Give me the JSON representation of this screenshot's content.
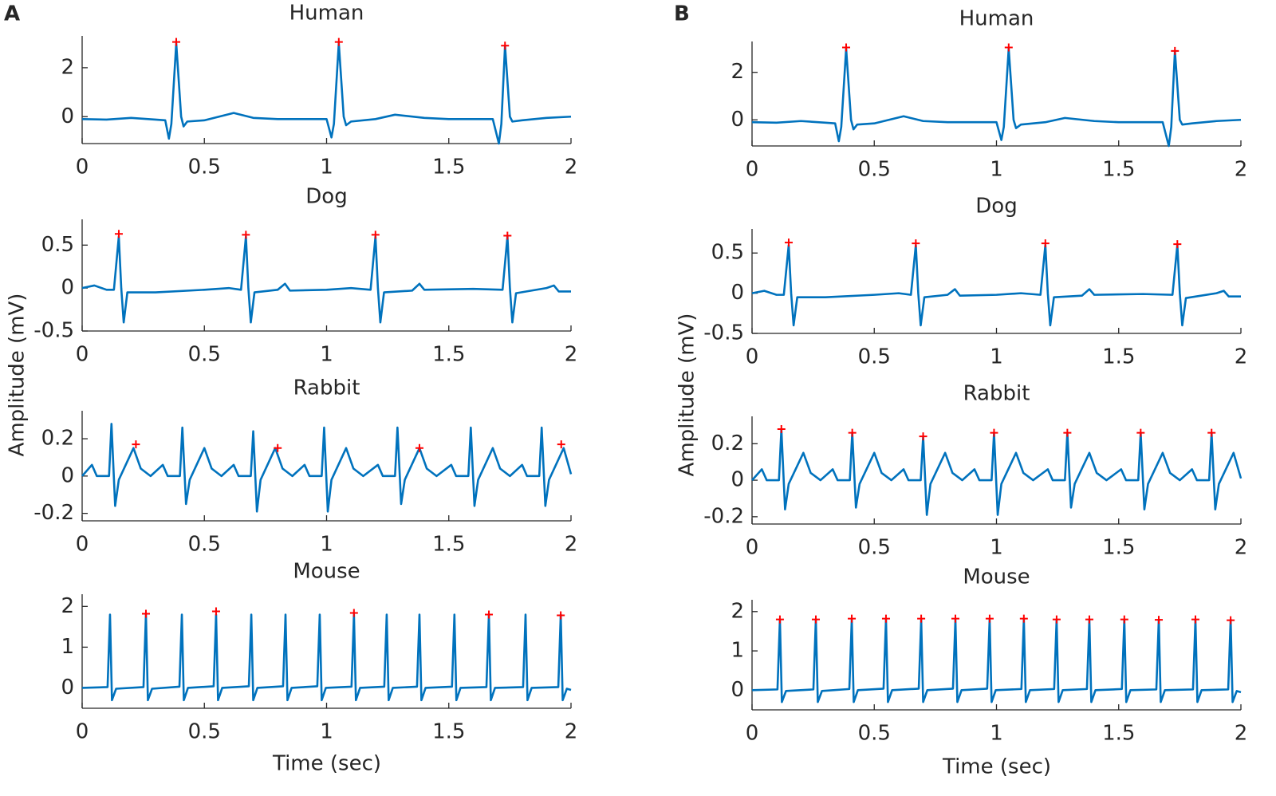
{
  "panels": [
    {
      "label": "A",
      "ylabel": "Amplitude (mV)",
      "xlabel": "Time (sec)"
    },
    {
      "label": "B",
      "ylabel": "Amplitude (mV)",
      "xlabel": "Time (sec)"
    }
  ],
  "chart_data": [
    {
      "type": "line",
      "title": "Human",
      "xlim": [
        0,
        2
      ],
      "xticks": [
        0,
        0.5,
        1,
        1.5,
        2
      ],
      "ylim": [
        -1.1,
        3.3
      ],
      "yticks": [
        0,
        2
      ],
      "x": [
        0,
        0.1,
        0.2,
        0.3,
        0.34,
        0.355,
        0.365,
        0.385,
        0.405,
        0.415,
        0.43,
        0.5,
        0.62,
        0.7,
        0.8,
        0.9,
        1.0,
        1.02,
        1.03,
        1.05,
        1.07,
        1.08,
        1.1,
        1.2,
        1.28,
        1.4,
        1.5,
        1.6,
        1.68,
        1.705,
        1.715,
        1.73,
        1.75,
        1.76,
        1.8,
        1.9,
        2.0
      ],
      "series": [
        {
          "color": "#0072bd",
          "values": [
            -0.1,
            -0.12,
            -0.05,
            -0.12,
            -0.15,
            -0.9,
            -0.3,
            3.0,
            0.0,
            -0.4,
            -0.2,
            -0.15,
            0.15,
            -0.05,
            -0.1,
            -0.1,
            -0.1,
            -0.85,
            -0.3,
            3.0,
            0.0,
            -0.35,
            -0.2,
            -0.1,
            0.08,
            -0.05,
            -0.1,
            -0.1,
            -0.1,
            -1.1,
            -0.3,
            2.9,
            0.0,
            -0.2,
            -0.15,
            -0.05,
            0.0
          ]
        }
      ],
      "markers": {
        "color": "#ff0000",
        "x": [
          0.385,
          1.05,
          1.73
        ],
        "values": [
          3.05,
          3.05,
          2.9
        ]
      }
    },
    {
      "type": "line",
      "title": "Dog",
      "xlim": [
        0,
        2
      ],
      "xticks": [
        0,
        0.5,
        1,
        1.5,
        2
      ],
      "ylim": [
        -0.5,
        0.8
      ],
      "yticks": [
        -0.5,
        0,
        0.5
      ],
      "x": [
        0,
        0.05,
        0.1,
        0.13,
        0.15,
        0.16,
        0.17,
        0.185,
        0.3,
        0.5,
        0.6,
        0.65,
        0.67,
        0.68,
        0.69,
        0.705,
        0.8,
        0.83,
        0.85,
        1.0,
        1.1,
        1.18,
        1.2,
        1.21,
        1.22,
        1.235,
        1.35,
        1.38,
        1.4,
        1.6,
        1.72,
        1.74,
        1.75,
        1.76,
        1.775,
        1.9,
        1.93,
        1.95,
        2.0
      ],
      "series": [
        {
          "color": "#0072bd",
          "values": [
            0.0,
            0.03,
            -0.02,
            -0.02,
            0.6,
            0.0,
            -0.4,
            -0.05,
            -0.05,
            -0.02,
            0.0,
            -0.02,
            0.6,
            0.0,
            -0.4,
            -0.05,
            -0.02,
            0.05,
            -0.03,
            -0.02,
            0.0,
            -0.02,
            0.6,
            0.0,
            -0.4,
            -0.05,
            -0.03,
            0.05,
            -0.02,
            -0.01,
            -0.02,
            0.6,
            0.0,
            -0.4,
            -0.06,
            0.0,
            0.03,
            -0.04,
            -0.04
          ]
        }
      ],
      "markers": {
        "color": "#ff0000",
        "x": [
          0.15,
          0.67,
          1.2,
          1.74
        ],
        "values": [
          0.63,
          0.62,
          0.62,
          0.61
        ]
      }
    },
    {
      "type": "line",
      "title": "Rabbit",
      "xlim": [
        0,
        2
      ],
      "xticks": [
        0,
        0.5,
        1,
        1.5,
        2
      ],
      "ylim": [
        -0.24,
        0.35
      ],
      "yticks": [
        -0.2,
        0,
        0.2
      ],
      "x": [
        0,
        0.04,
        0.06,
        0.11,
        0.12,
        0.135,
        0.15,
        0.21,
        0.24,
        0.28,
        0.33,
        0.35,
        0.4,
        0.41,
        0.425,
        0.44,
        0.5,
        0.53,
        0.57,
        0.62,
        0.64,
        0.69,
        0.7,
        0.715,
        0.73,
        0.79,
        0.82,
        0.86,
        0.91,
        0.93,
        0.98,
        0.99,
        1.005,
        1.02,
        1.08,
        1.11,
        1.15,
        1.21,
        1.23,
        1.28,
        1.29,
        1.305,
        1.32,
        1.38,
        1.41,
        1.45,
        1.51,
        1.53,
        1.58,
        1.59,
        1.605,
        1.62,
        1.68,
        1.71,
        1.75,
        1.8,
        1.82,
        1.87,
        1.88,
        1.895,
        1.91,
        1.97,
        2.0
      ],
      "series": [
        {
          "color": "#0072bd",
          "values": [
            0.0,
            0.06,
            0.0,
            0.0,
            0.28,
            -0.16,
            -0.02,
            0.15,
            0.04,
            0.0,
            0.06,
            0.0,
            0.0,
            0.26,
            -0.15,
            -0.02,
            0.15,
            0.04,
            0.0,
            0.06,
            0.0,
            0.0,
            0.24,
            -0.19,
            -0.02,
            0.15,
            0.04,
            0.0,
            0.06,
            0.0,
            0.0,
            0.26,
            -0.19,
            -0.02,
            0.15,
            0.04,
            0.0,
            0.06,
            0.0,
            0.0,
            0.26,
            -0.15,
            -0.02,
            0.15,
            0.04,
            0.0,
            0.06,
            0.0,
            0.0,
            0.26,
            -0.16,
            -0.02,
            0.15,
            0.04,
            0.0,
            0.06,
            0.0,
            0.0,
            0.26,
            -0.16,
            -0.02,
            0.15,
            0.01
          ]
        }
      ],
      "markers": {
        "color": "#ff0000",
        "x": [
          0.22,
          0.8,
          1.38,
          1.96
        ],
        "values": [
          0.17,
          0.15,
          0.15,
          0.17
        ]
      }
    },
    {
      "type": "line",
      "title": "Mouse",
      "xlim": [
        0,
        2
      ],
      "xticks": [
        0,
        0.5,
        1,
        1.5,
        2
      ],
      "ylim": [
        -0.5,
        2.3
      ],
      "yticks": [
        0,
        1,
        2
      ],
      "x": [
        0,
        0.104,
        0.114,
        0.122,
        0.139,
        0.251,
        0.261,
        0.269,
        0.286,
        0.398,
        0.408,
        0.416,
        0.433,
        0.538,
        0.548,
        0.556,
        0.573,
        0.682,
        0.692,
        0.7,
        0.717,
        0.822,
        0.832,
        0.84,
        0.857,
        0.962,
        0.972,
        0.98,
        0.997,
        1.102,
        1.112,
        1.12,
        1.137,
        1.236,
        1.246,
        1.254,
        1.271,
        1.37,
        1.38,
        1.388,
        1.405,
        1.513,
        1.523,
        1.531,
        1.548,
        1.654,
        1.664,
        1.672,
        1.689,
        1.804,
        1.814,
        1.822,
        1.839,
        1.948,
        1.958,
        1.966,
        1.983,
        2.0
      ],
      "series": [
        {
          "color": "#0072bd",
          "values": [
            0.0,
            0.02,
            1.8,
            -0.3,
            -0.02,
            0.02,
            1.8,
            -0.3,
            -0.02,
            0.03,
            1.8,
            -0.3,
            0.0,
            0.04,
            1.8,
            -0.3,
            0.0,
            0.04,
            1.8,
            -0.3,
            0.0,
            0.04,
            1.8,
            -0.3,
            0.0,
            0.04,
            1.8,
            -0.3,
            0.0,
            0.03,
            1.8,
            -0.3,
            0.0,
            0.03,
            1.8,
            -0.3,
            0.0,
            0.03,
            1.8,
            -0.3,
            0.0,
            0.03,
            1.8,
            -0.3,
            0.0,
            0.02,
            1.8,
            -0.3,
            0.0,
            0.02,
            1.8,
            -0.3,
            0.0,
            0.02,
            1.8,
            -0.3,
            -0.02,
            -0.05
          ]
        }
      ],
      "markers": {
        "color": "#ff0000",
        "x": [
          0.261,
          0.548,
          1.112,
          1.664,
          1.958
        ],
        "values": [
          1.82,
          1.88,
          1.84,
          1.8,
          1.78
        ]
      },
      "xlabel": "Time (sec)"
    },
    {
      "type": "line",
      "title": "Human",
      "xlim": [
        0,
        2
      ],
      "xticks": [
        0,
        0.5,
        1,
        1.5,
        2
      ],
      "ylim": [
        -1.1,
        3.3
      ],
      "yticks": [
        0,
        2
      ],
      "x": [
        0,
        0.1,
        0.2,
        0.3,
        0.34,
        0.355,
        0.365,
        0.385,
        0.405,
        0.415,
        0.43,
        0.5,
        0.62,
        0.7,
        0.8,
        0.9,
        1.0,
        1.02,
        1.03,
        1.05,
        1.07,
        1.08,
        1.1,
        1.2,
        1.28,
        1.4,
        1.5,
        1.6,
        1.68,
        1.705,
        1.715,
        1.73,
        1.75,
        1.76,
        1.8,
        1.9,
        2.0
      ],
      "series": [
        {
          "color": "#0072bd",
          "values": [
            -0.1,
            -0.12,
            -0.05,
            -0.12,
            -0.15,
            -0.9,
            -0.3,
            3.0,
            0.0,
            -0.4,
            -0.2,
            -0.15,
            0.15,
            -0.05,
            -0.1,
            -0.1,
            -0.1,
            -0.85,
            -0.3,
            3.0,
            0.0,
            -0.35,
            -0.2,
            -0.1,
            0.08,
            -0.05,
            -0.1,
            -0.1,
            -0.1,
            -1.1,
            -0.3,
            2.9,
            0.0,
            -0.2,
            -0.15,
            -0.05,
            0.0
          ]
        }
      ],
      "markers": {
        "color": "#ff0000",
        "x": [
          0.385,
          1.05,
          1.73
        ],
        "values": [
          3.05,
          3.05,
          2.9
        ]
      }
    },
    {
      "type": "line",
      "title": "Dog",
      "xlim": [
        0,
        2
      ],
      "xticks": [
        0,
        0.5,
        1,
        1.5,
        2
      ],
      "ylim": [
        -0.5,
        0.8
      ],
      "yticks": [
        -0.5,
        0,
        0.5
      ],
      "x": [
        0,
        0.05,
        0.1,
        0.13,
        0.15,
        0.16,
        0.17,
        0.185,
        0.3,
        0.5,
        0.6,
        0.65,
        0.67,
        0.68,
        0.69,
        0.705,
        0.8,
        0.83,
        0.85,
        1.0,
        1.1,
        1.18,
        1.2,
        1.21,
        1.22,
        1.235,
        1.35,
        1.38,
        1.4,
        1.6,
        1.72,
        1.74,
        1.75,
        1.76,
        1.775,
        1.9,
        1.93,
        1.95,
        2.0
      ],
      "series": [
        {
          "color": "#0072bd",
          "values": [
            0.0,
            0.03,
            -0.02,
            -0.02,
            0.6,
            0.0,
            -0.4,
            -0.05,
            -0.05,
            -0.02,
            0.0,
            -0.02,
            0.6,
            0.0,
            -0.4,
            -0.05,
            -0.02,
            0.05,
            -0.03,
            -0.02,
            0.0,
            -0.02,
            0.6,
            0.0,
            -0.4,
            -0.05,
            -0.03,
            0.05,
            -0.02,
            -0.01,
            -0.02,
            0.6,
            0.0,
            -0.4,
            -0.06,
            0.0,
            0.03,
            -0.04,
            -0.04
          ]
        }
      ],
      "markers": {
        "color": "#ff0000",
        "x": [
          0.15,
          0.67,
          1.2,
          1.74
        ],
        "values": [
          0.63,
          0.62,
          0.62,
          0.61
        ]
      }
    },
    {
      "type": "line",
      "title": "Rabbit",
      "xlim": [
        0,
        2
      ],
      "xticks": [
        0,
        0.5,
        1,
        1.5,
        2
      ],
      "ylim": [
        -0.24,
        0.35
      ],
      "yticks": [
        -0.2,
        0,
        0.2
      ],
      "x": [
        0,
        0.04,
        0.06,
        0.11,
        0.12,
        0.135,
        0.15,
        0.21,
        0.24,
        0.28,
        0.33,
        0.35,
        0.4,
        0.41,
        0.425,
        0.44,
        0.5,
        0.53,
        0.57,
        0.62,
        0.64,
        0.69,
        0.7,
        0.715,
        0.73,
        0.79,
        0.82,
        0.86,
        0.91,
        0.93,
        0.98,
        0.99,
        1.005,
        1.02,
        1.08,
        1.11,
        1.15,
        1.21,
        1.23,
        1.28,
        1.29,
        1.305,
        1.32,
        1.38,
        1.41,
        1.45,
        1.51,
        1.53,
        1.58,
        1.59,
        1.605,
        1.62,
        1.68,
        1.71,
        1.75,
        1.8,
        1.82,
        1.87,
        1.88,
        1.895,
        1.91,
        1.97,
        2.0
      ],
      "series": [
        {
          "color": "#0072bd",
          "values": [
            0.0,
            0.06,
            0.0,
            0.0,
            0.28,
            -0.16,
            -0.02,
            0.15,
            0.04,
            0.0,
            0.06,
            0.0,
            0.0,
            0.26,
            -0.15,
            -0.02,
            0.15,
            0.04,
            0.0,
            0.06,
            0.0,
            0.0,
            0.24,
            -0.19,
            -0.02,
            0.15,
            0.04,
            0.0,
            0.06,
            0.0,
            0.0,
            0.26,
            -0.19,
            -0.02,
            0.15,
            0.04,
            0.0,
            0.06,
            0.0,
            0.0,
            0.26,
            -0.15,
            -0.02,
            0.15,
            0.04,
            0.0,
            0.06,
            0.0,
            0.0,
            0.26,
            -0.16,
            -0.02,
            0.15,
            0.04,
            0.0,
            0.06,
            0.0,
            0.0,
            0.26,
            -0.16,
            -0.02,
            0.15,
            0.01
          ]
        }
      ],
      "markers": {
        "color": "#ff0000",
        "x": [
          0.12,
          0.41,
          0.7,
          0.99,
          1.29,
          1.59,
          1.88
        ],
        "values": [
          0.28,
          0.26,
          0.24,
          0.26,
          0.26,
          0.26,
          0.26
        ]
      }
    },
    {
      "type": "line",
      "title": "Mouse",
      "xlim": [
        0,
        2
      ],
      "xticks": [
        0,
        0.5,
        1,
        1.5,
        2
      ],
      "ylim": [
        -0.5,
        2.3
      ],
      "yticks": [
        0,
        1,
        2
      ],
      "x": [
        0,
        0.104,
        0.114,
        0.122,
        0.139,
        0.251,
        0.261,
        0.269,
        0.286,
        0.398,
        0.408,
        0.416,
        0.433,
        0.538,
        0.548,
        0.556,
        0.573,
        0.682,
        0.692,
        0.7,
        0.717,
        0.822,
        0.832,
        0.84,
        0.857,
        0.962,
        0.972,
        0.98,
        0.997,
        1.102,
        1.112,
        1.12,
        1.137,
        1.236,
        1.246,
        1.254,
        1.271,
        1.37,
        1.38,
        1.388,
        1.405,
        1.513,
        1.523,
        1.531,
        1.548,
        1.654,
        1.664,
        1.672,
        1.689,
        1.804,
        1.814,
        1.822,
        1.839,
        1.948,
        1.958,
        1.966,
        1.983,
        2.0
      ],
      "series": [
        {
          "color": "#0072bd",
          "values": [
            0.0,
            0.02,
            1.8,
            -0.3,
            -0.02,
            0.02,
            1.8,
            -0.3,
            -0.02,
            0.03,
            1.8,
            -0.3,
            0.0,
            0.04,
            1.8,
            -0.3,
            0.0,
            0.04,
            1.8,
            -0.3,
            0.0,
            0.04,
            1.8,
            -0.3,
            0.0,
            0.04,
            1.8,
            -0.3,
            0.0,
            0.03,
            1.8,
            -0.3,
            0.0,
            0.03,
            1.8,
            -0.3,
            0.0,
            0.03,
            1.8,
            -0.3,
            0.0,
            0.03,
            1.8,
            -0.3,
            0.0,
            0.02,
            1.8,
            -0.3,
            0.0,
            0.02,
            1.8,
            -0.3,
            0.0,
            0.02,
            1.8,
            -0.3,
            -0.02,
            -0.05
          ]
        }
      ],
      "markers": {
        "color": "#ff0000",
        "x": [
          0.114,
          0.261,
          0.408,
          0.548,
          0.692,
          0.832,
          0.972,
          1.112,
          1.246,
          1.38,
          1.523,
          1.664,
          1.814,
          1.958
        ],
        "values": [
          1.8,
          1.8,
          1.82,
          1.82,
          1.82,
          1.82,
          1.82,
          1.82,
          1.8,
          1.8,
          1.8,
          1.79,
          1.8,
          1.78
        ]
      },
      "xlabel": "Time (sec)"
    }
  ]
}
